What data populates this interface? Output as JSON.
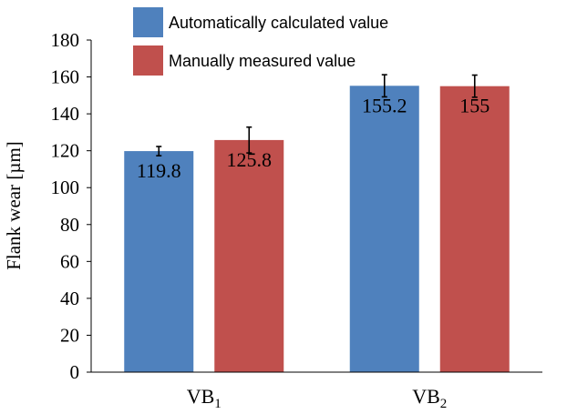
{
  "chart_data": {
    "type": "bar",
    "title": "",
    "xlabel": "",
    "ylabel": "Flank wear [µm]",
    "ylim": [
      0,
      180
    ],
    "yticks": [
      0,
      20,
      40,
      60,
      80,
      100,
      120,
      140,
      160,
      180
    ],
    "grid": false,
    "legend_position": "top-left",
    "categories": [
      {
        "base": "VB",
        "sub": "1"
      },
      {
        "base": "VB",
        "sub": "2"
      }
    ],
    "series": [
      {
        "name": "Automatically calculated value",
        "color": "#4f81bd",
        "values": [
          119.8,
          155.2
        ],
        "labels": [
          "119.8",
          "155.2"
        ],
        "errors": [
          2.5,
          6
        ]
      },
      {
        "name": "Manually measured value",
        "color": "#c0504d",
        "values": [
          125.8,
          155
        ],
        "labels": [
          "125.8",
          "155"
        ],
        "errors": [
          7,
          6
        ]
      }
    ]
  }
}
